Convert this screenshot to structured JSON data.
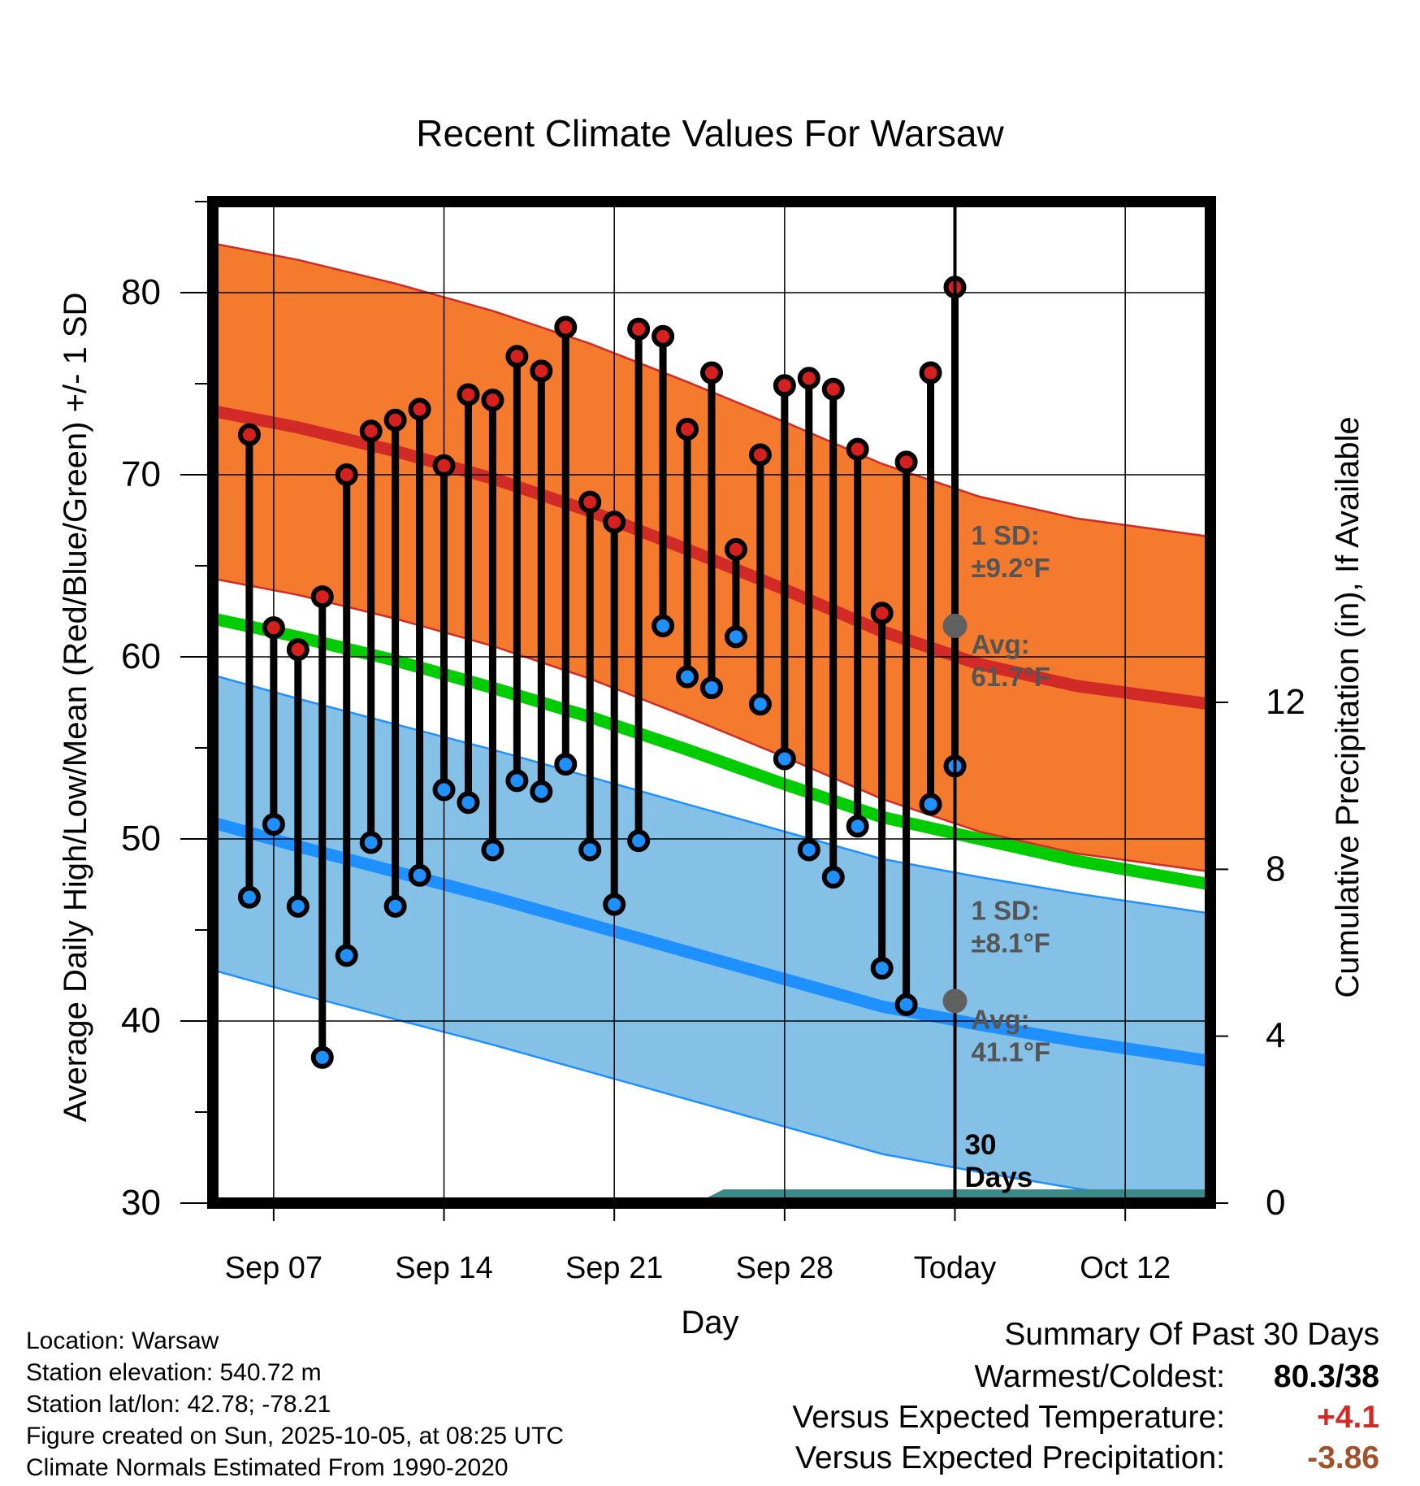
{
  "chart_data": {
    "type": "line",
    "title": "Recent Climate Values For Warsaw",
    "xlabel": "Day",
    "ylabel": "Average Daily High/Low/Mean (Red/Blue/Green) +/- 1 SD",
    "ylabel_right": "Cumulative Precipitation (in), If Available",
    "ylim": [
      30,
      85
    ],
    "y2lim": [
      0,
      24
    ],
    "yticks": [
      "30",
      "40",
      "50",
      "60",
      "70",
      "80"
    ],
    "y2ticks": [
      "0",
      "4",
      "8",
      "12"
    ],
    "x_tick_labels": [
      "Sep 07",
      "Sep 14",
      "Sep 21",
      "Sep 28",
      "Today",
      "Oct 12"
    ],
    "x_tick_days": [
      7,
      14,
      21,
      28,
      35,
      42
    ],
    "x_range_days": [
      4.5,
      45.5
    ],
    "today_day": 35,
    "normals": {
      "days": [
        4.5,
        8,
        12,
        16,
        20,
        24,
        28,
        32,
        36,
        40,
        45.5
      ],
      "avg_high": [
        73.5,
        72.6,
        71.3,
        69.8,
        68.0,
        65.9,
        63.7,
        61.4,
        59.6,
        58.4,
        57.4
      ],
      "avg_low": [
        50.9,
        49.6,
        48.2,
        46.8,
        45.3,
        43.8,
        42.3,
        40.8,
        39.8,
        38.9,
        37.8
      ],
      "avg_mean": [
        62.1,
        61.1,
        59.8,
        58.3,
        56.7,
        54.9,
        53.0,
        51.2,
        50.0,
        48.8,
        47.5
      ],
      "high_sd": 9.2,
      "low_sd": 8.1
    },
    "daily": {
      "days": [
        6,
        7,
        8,
        9,
        10,
        11,
        12,
        13,
        14,
        15,
        16,
        17,
        18,
        19,
        20,
        21,
        22,
        23,
        24,
        25,
        26,
        27,
        28,
        29,
        30,
        31,
        32,
        33,
        34
      ],
      "high": [
        72.2,
        61.6,
        60.4,
        63.3,
        70.0,
        72.4,
        73.0,
        73.6,
        70.5,
        74.4,
        74.1,
        76.5,
        75.7,
        78.1,
        68.5,
        67.4,
        78.0,
        77.6,
        72.5,
        75.6,
        65.9,
        71.1,
        74.9,
        75.3,
        74.7,
        71.4,
        62.4,
        70.7,
        75.6
      ],
      "low": [
        46.8,
        50.8,
        46.3,
        38.0,
        43.6,
        49.8,
        46.3,
        48.0,
        52.7,
        52.0,
        49.4,
        53.2,
        52.6,
        54.1,
        49.4,
        46.4,
        49.9,
        61.7,
        58.9,
        58.3,
        61.1,
        57.4,
        54.4,
        49.4,
        47.9,
        50.7,
        42.9,
        40.9,
        51.9
      ]
    },
    "daily_last": {
      "day": 35,
      "high": 80.3,
      "low": 54.0
    },
    "precip_cumulative": {
      "days": [
        4.5,
        24.5,
        25.5,
        45.5
      ],
      "values": [
        0,
        0,
        0.3,
        0.3
      ]
    },
    "annotations": {
      "high_sd": "1 SD:",
      "high_sd_value": "±9.2°F",
      "high_avg": "Avg:",
      "high_avg_value": "61.7°F",
      "high_avg_num": 61.7,
      "low_sd": "1 SD:",
      "low_sd_value": "±8.1°F",
      "low_avg": "Avg:",
      "low_avg_value": "41.1°F",
      "low_avg_num": 41.1,
      "window_num": "30",
      "window_unit": "Days"
    },
    "colors": {
      "high_band": "#f47a2e",
      "high_line": "#d22a26",
      "low_band": "#85c1e6",
      "low_line": "#1e90ff",
      "mean_line": "#00cc00",
      "precip": "#3b8a8a",
      "high_dot": "#d62020",
      "low_dot": "#1e90ff",
      "marker": "#606060"
    }
  },
  "info": {
    "location": "Location: Warsaw",
    "elevation": "Station elevation: 540.72 m",
    "latlon": "Station lat/lon: 42.78; -78.21",
    "created": "Figure created on Sun, 2025-10-05, at 08:25 UTC",
    "normals": "Climate Normals Estimated From 1990-2020"
  },
  "summary": {
    "title": "Summary Of Past 30 Days",
    "warmest_label": "Warmest/Coldest:",
    "warmest_value": "80.3/38",
    "temp_label": "Versus Expected Temperature:",
    "temp_value": "+4.1",
    "temp_color": "#d22a26",
    "precip_label": "Versus Expected Precipitation:",
    "precip_value": "-3.86",
    "precip_color": "#a0522d"
  }
}
